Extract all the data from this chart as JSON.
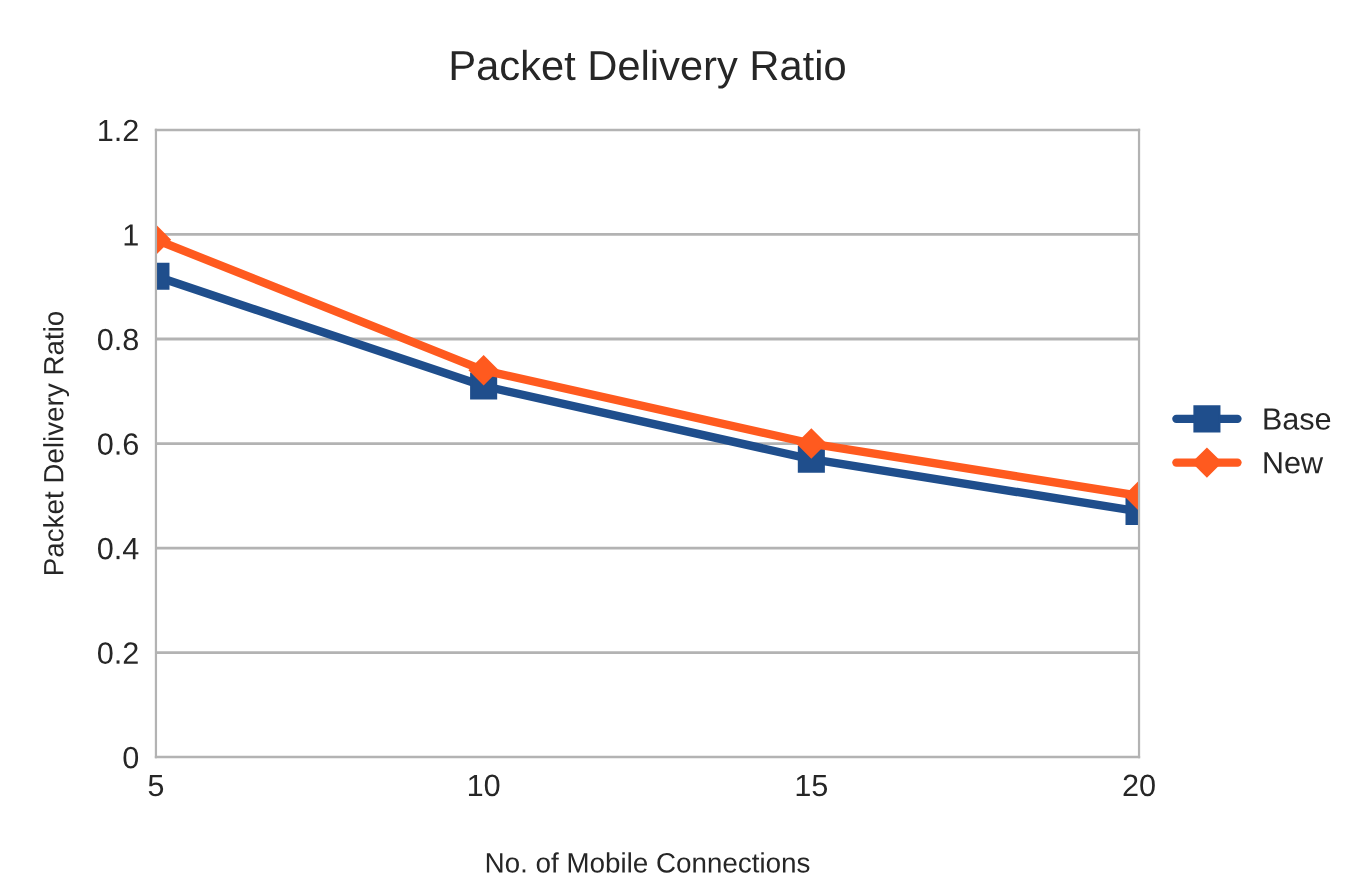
{
  "chart_data": {
    "type": "line",
    "title": "Packet Delivery Ratio",
    "xlabel": "No. of Mobile Connections",
    "ylabel": "Packet Delivery Ratio",
    "x": [
      5,
      10,
      15,
      20
    ],
    "series": [
      {
        "name": "Base",
        "color": "#1f4e8c",
        "marker": "square",
        "values": [
          0.92,
          0.71,
          0.57,
          0.47
        ]
      },
      {
        "name": "New",
        "color": "#ff5a1f",
        "marker": "diamond",
        "values": [
          0.99,
          0.74,
          0.6,
          0.5
        ]
      }
    ],
    "xlim": [
      5,
      20
    ],
    "xticks": [
      5,
      10,
      15,
      20
    ],
    "ylim": [
      0,
      1.2
    ],
    "yticks": [
      0,
      0.2,
      0.4,
      0.6,
      0.8,
      1,
      1.2
    ],
    "grid": "y",
    "legend": "right"
  }
}
